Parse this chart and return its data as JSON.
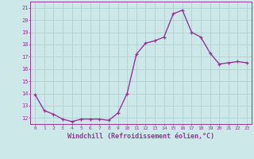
{
  "x": [
    0,
    1,
    2,
    3,
    4,
    5,
    6,
    7,
    8,
    9,
    10,
    11,
    12,
    13,
    14,
    15,
    16,
    17,
    18,
    19,
    20,
    21,
    22,
    23
  ],
  "y": [
    13.9,
    12.6,
    12.3,
    11.9,
    11.7,
    11.9,
    11.9,
    11.9,
    11.8,
    12.4,
    14.0,
    17.2,
    18.1,
    18.3,
    18.6,
    20.5,
    20.8,
    19.0,
    18.6,
    17.3,
    16.4,
    16.5,
    16.6,
    16.5
  ],
  "line_color": "#993399",
  "marker": "+",
  "bg_color": "#cce8e8",
  "grid_color": "#b0d0d0",
  "xlabel": "Windchill (Refroidissement éolien,°C)",
  "ylabel_ticks": [
    12,
    13,
    14,
    15,
    16,
    17,
    18,
    19,
    20,
    21
  ],
  "xlim": [
    -0.5,
    23.5
  ],
  "ylim": [
    11.5,
    21.5
  ],
  "xlabel_color": "#993399",
  "tick_color": "#993399",
  "font_family": "monospace"
}
